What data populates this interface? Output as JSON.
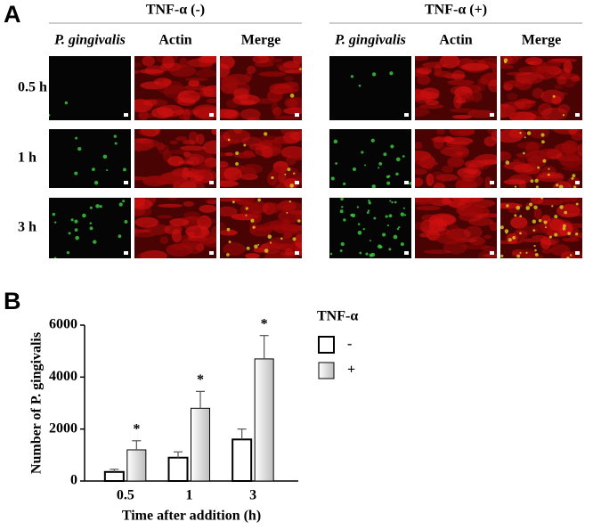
{
  "panel_a": {
    "label": "A",
    "groups": [
      {
        "title": "TNF-α (-)",
        "columns": [
          "P. gingivalis",
          "Actin",
          "Merge"
        ]
      },
      {
        "title": "TNF-α (+)",
        "columns": [
          "P. gingivalis",
          "Actin",
          "Merge"
        ]
      }
    ],
    "rows": [
      "0.5 h",
      "1 h",
      "3 h"
    ]
  },
  "panel_b": {
    "label": "B"
  },
  "chart_data": {
    "type": "bar",
    "categories": [
      "0.5",
      "1",
      "3"
    ],
    "series": [
      {
        "name": "-",
        "color": "#ffffff",
        "values": [
          350,
          900,
          1600
        ],
        "errors": [
          100,
          220,
          400
        ]
      },
      {
        "name": "+",
        "color": "#bdbdbd",
        "values": [
          1200,
          2800,
          4700
        ],
        "errors": [
          350,
          650,
          900
        ],
        "annotations": [
          "*",
          "*",
          "*"
        ]
      }
    ],
    "ylim": [
      0,
      6000
    ],
    "yticks": [
      0,
      2000,
      4000,
      6000
    ],
    "x_label": "Time after addition (h)",
    "y_label": "Number of P. gingivalis",
    "legend_title": "TNF-α"
  }
}
